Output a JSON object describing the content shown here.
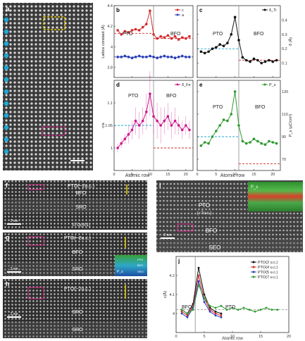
{
  "panels": {
    "a": {
      "letter": "a"
    },
    "b": {
      "letter": "b",
      "region_left": "PTO",
      "region_right": "BFO",
      "legend": [
        "a",
        "c"
      ],
      "ylabel": "Lattice constant (Å)"
    },
    "c": {
      "letter": "c",
      "region_left": "PTO",
      "region_right": "BFO",
      "legend": [
        "δ_Ti"
      ],
      "ylabel": "δ (Å)"
    },
    "d": {
      "letter": "d",
      "region_left": "PTO",
      "region_right": "BFO",
      "legend": [
        "δ_Fe"
      ],
      "ylabel": "c/a"
    },
    "e": {
      "letter": "e",
      "region_left": "PTO",
      "region_right": "BFO",
      "legend": [
        "P_s"
      ],
      "ylabel": "P_s (μC/cm²)"
    },
    "f": {
      "letter": "f",
      "labels": [
        "PTO(~2u.c.)",
        "BFO",
        "SRO",
        "STO(001)"
      ],
      "scale": "2 nm"
    },
    "g": {
      "letter": "g",
      "labels": [
        "PTO(~2u.c.)",
        "BFO",
        "SRO"
      ],
      "scale": "2 nm",
      "inset": [
        "P_s",
        "PTO",
        "BFO",
        "SRO"
      ]
    },
    "h": {
      "letter": "h",
      "labels": [
        "PTO(~2u.c.)",
        "SRO",
        "SRO"
      ],
      "scale": "2 nm"
    },
    "i": {
      "letter": "i",
      "labels": [
        "PTO",
        "(~7u.c.)",
        "BFO",
        "SEO"
      ],
      "scale": "2 nm",
      "inset": [
        "P_s"
      ]
    },
    "j": {
      "letter": "j",
      "region_left": "BFO",
      "region_right": "PTO",
      "ylabel": "c(Å)",
      "xlabel": "Atomic row",
      "legend": [
        "PTO(2 u.c.)",
        "PTO(4 u.c.)",
        "PTO(5 u.c.)",
        "PTO(7 u.c.)"
      ]
    }
  },
  "axis": {
    "atomic_row": "Atomic row"
  },
  "colors": {
    "red": "#d42a2a",
    "blue": "#2a3fb8",
    "black": "#111111",
    "magenta": "#d0148c",
    "green": "#2e9a2e",
    "cyan": "#1aa9d6"
  },
  "chart_data": [
    {
      "type": "line",
      "panel": "b",
      "xlabel": "",
      "ylabel": "Lattice constant (Å)",
      "xlim": [
        0,
        22
      ],
      "ylim": [
        3.7,
        4.4
      ],
      "x": [
        1,
        2,
        3,
        4,
        5,
        6,
        7,
        8,
        9,
        10,
        11,
        12,
        13,
        14,
        15,
        16,
        17,
        18,
        19,
        20,
        21
      ],
      "series": [
        {
          "name": "c",
          "values": [
            4.16,
            4.12,
            4.15,
            4.14,
            4.16,
            4.17,
            4.16,
            4.19,
            4.22,
            4.35,
            4.12,
            4.08,
            4.1,
            4.09,
            4.11,
            4.08,
            4.1,
            4.07,
            4.09,
            4.08,
            4.1
          ]
        },
        {
          "name": "a",
          "values": [
            3.9,
            3.9,
            3.91,
            3.9,
            3.89,
            3.9,
            3.91,
            3.9,
            3.9,
            3.91,
            3.9,
            3.89,
            3.9,
            3.91,
            3.9,
            3.9,
            3.89,
            3.9,
            3.91,
            3.9,
            3.9
          ]
        }
      ]
    },
    {
      "type": "line",
      "panel": "c",
      "xlabel": "",
      "ylabel": "δ (Å)",
      "xlim": [
        0,
        22
      ],
      "ylim": [
        0.0,
        0.5
      ],
      "x": [
        1,
        2,
        3,
        4,
        5,
        6,
        7,
        8,
        9,
        10,
        11,
        12,
        13,
        14,
        15,
        16,
        17,
        18,
        19,
        20,
        21
      ],
      "series": [
        {
          "name": "δ_Ti",
          "values": [
            0.18,
            0.17,
            0.18,
            0.2,
            0.21,
            0.23,
            0.22,
            0.24,
            0.3,
            0.42,
            0.26,
            0.14,
            0.12,
            0.11,
            0.13,
            0.12,
            0.1,
            0.11,
            0.12,
            0.11,
            0.12
          ]
        }
      ]
    },
    {
      "type": "line",
      "panel": "d",
      "xlabel": "Atomic row",
      "ylabel": "c/a",
      "xlim": [
        0,
        22
      ],
      "ylim": [
        0.95,
        1.15
      ],
      "x": [
        1,
        2,
        3,
        4,
        5,
        6,
        7,
        8,
        9,
        10,
        11,
        12,
        13,
        14,
        15,
        16,
        17,
        18,
        19,
        20,
        21
      ],
      "series": [
        {
          "name": "δ_Fe",
          "values": [
            1.0,
            1.01,
            1.02,
            1.03,
            1.04,
            1.06,
            1.05,
            1.06,
            1.08,
            1.12,
            1.07,
            1.06,
            1.05,
            1.06,
            1.07,
            1.05,
            1.06,
            1.05,
            1.04,
            1.05,
            1.04
          ]
        }
      ]
    },
    {
      "type": "line",
      "panel": "e",
      "xlabel": "Atomic row",
      "ylabel": "P_s (μC/cm²)",
      "xlim": [
        0,
        22
      ],
      "ylim": [
        60,
        140
      ],
      "x": [
        1,
        2,
        3,
        4,
        5,
        6,
        7,
        8,
        9,
        10,
        11,
        12,
        13,
        14,
        15,
        16,
        17,
        18,
        19,
        20,
        21
      ],
      "series": [
        {
          "name": "P_s",
          "values": [
            82,
            85,
            84,
            90,
            95,
            100,
            105,
            104,
            110,
            130,
            100,
            86,
            84,
            85,
            88,
            86,
            84,
            83,
            86,
            85,
            84
          ]
        }
      ]
    },
    {
      "type": "line",
      "panel": "j",
      "xlabel": "Atomic row",
      "ylabel": "c(Å)",
      "xlim": [
        0,
        20
      ],
      "ylim": [
        3.9,
        4.3
      ],
      "series": [
        {
          "name": "PTO(2 u.c.)",
          "x": [
            1,
            2,
            3,
            4,
            5,
            6,
            7,
            8
          ],
          "values": [
            4.02,
            4.0,
            4.05,
            4.24,
            4.1,
            4.03,
            4.01,
            4.0
          ]
        },
        {
          "name": "PTO(4 u.c.)",
          "x": [
            1,
            2,
            3,
            4,
            5,
            6,
            7,
            8
          ],
          "values": [
            4.01,
            3.99,
            4.04,
            4.2,
            4.08,
            4.02,
            4.0,
            3.99
          ]
        },
        {
          "name": "PTO(5 u.c.)",
          "x": [
            1,
            2,
            3,
            4,
            5,
            6,
            7,
            8
          ],
          "values": [
            4.0,
            3.98,
            4.03,
            4.17,
            4.06,
            4.01,
            3.99,
            3.98
          ]
        },
        {
          "name": "PTO(7 u.c.)",
          "x": [
            1,
            2,
            3,
            4,
            5,
            6,
            7,
            8,
            9,
            10,
            11,
            12,
            13,
            14,
            15,
            16,
            17,
            18
          ],
          "values": [
            4.02,
            4.0,
            4.02,
            4.15,
            4.08,
            4.04,
            4.03,
            4.04,
            4.02,
            4.03,
            4.02,
            4.03,
            4.02,
            4.01,
            4.02,
            4.03,
            4.02,
            4.02
          ]
        }
      ]
    }
  ]
}
